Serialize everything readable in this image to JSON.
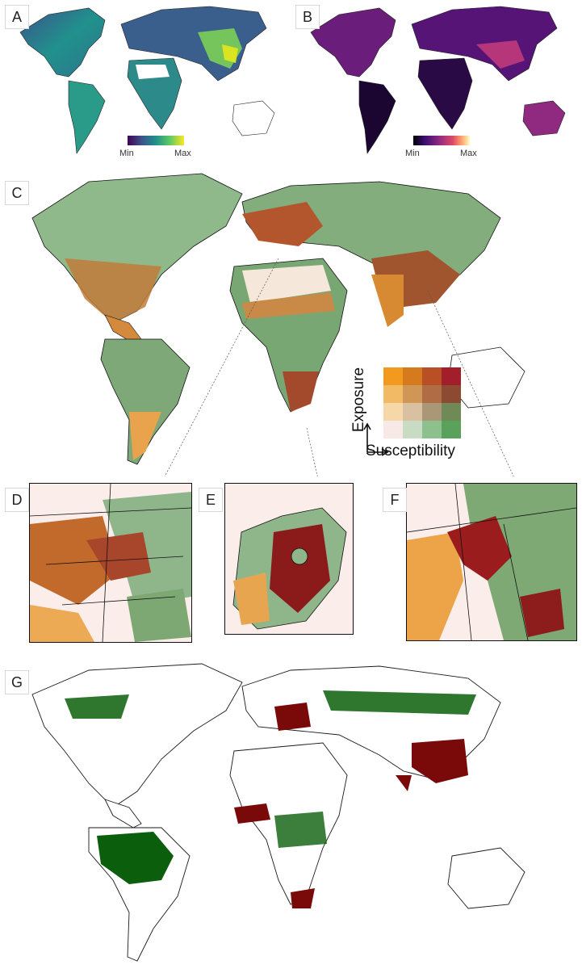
{
  "panels": {
    "A": {
      "label": "A",
      "colorbar": {
        "min_label": "Min",
        "max_label": "Max",
        "colormap": "viridis"
      }
    },
    "B": {
      "label": "B",
      "colorbar": {
        "min_label": "Min",
        "max_label": "Max",
        "colormap": "magma"
      }
    },
    "C": {
      "label": "C",
      "legend": {
        "y_label": "Exposure",
        "x_label": "Susceptibility",
        "grid_colors": [
          [
            "#f19a1d",
            "#d67a1e",
            "#b94f24",
            "#a21e2a"
          ],
          [
            "#f3ba66",
            "#cf9655",
            "#b06d45",
            "#8d4a33"
          ],
          [
            "#f6d7a8",
            "#d8c0a0",
            "#a99777",
            "#6f8a57"
          ],
          [
            "#f8e9e7",
            "#c8dcc4",
            "#8dc08d",
            "#5aa25c"
          ]
        ]
      }
    },
    "D": {
      "label": "D"
    },
    "E": {
      "label": "E"
    },
    "F": {
      "label": "F"
    },
    "G": {
      "label": "G"
    }
  },
  "colors": {
    "viridis": [
      "#440154",
      "#3b528b",
      "#21918c",
      "#5ec962",
      "#fde725"
    ],
    "magma": [
      "#000004",
      "#3b0f70",
      "#8c2981",
      "#de4968",
      "#fe9f6d",
      "#fcfdbf"
    ],
    "green": "#0b5e0b",
    "red": "#7a0a0a",
    "outline": "#1a1a1a"
  }
}
